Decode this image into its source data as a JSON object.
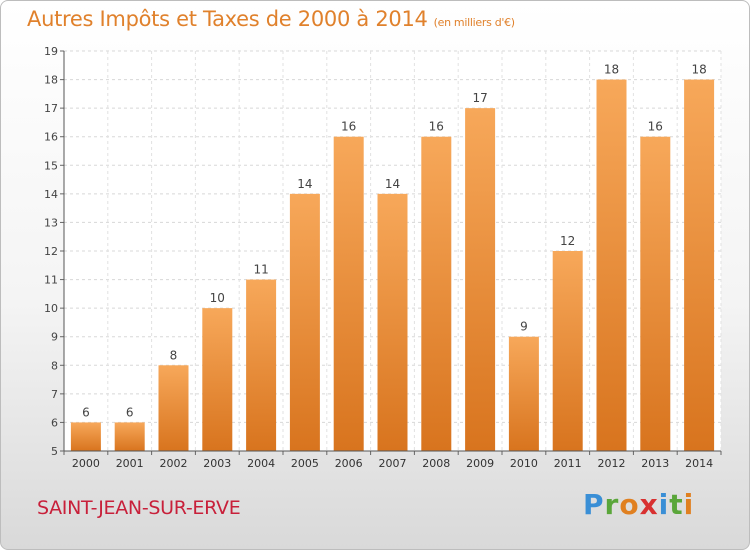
{
  "title": "Autres Impôts et Taxes de 2000 à 2014",
  "unit_note": "(en milliers d'€)",
  "footer": {
    "town": "SAINT-JEAN-SUR-ERVE",
    "logo_letters": [
      "P",
      "r",
      "o",
      "x",
      "i",
      "t",
      "i"
    ],
    "logo_colors": [
      "#3a8fd6",
      "#5aa63a",
      "#e08020",
      "#d83030",
      "#3a8fd6",
      "#5aa63a",
      "#e08020"
    ]
  },
  "chart_data": {
    "type": "bar",
    "title": "Autres Impôts et Taxes de 2000 à 2014",
    "subtitle": "(en milliers d'€)",
    "categories": [
      "2000",
      "2001",
      "2002",
      "2003",
      "2004",
      "2005",
      "2006",
      "2007",
      "2008",
      "2009",
      "2010",
      "2011",
      "2012",
      "2013",
      "2014"
    ],
    "values": [
      6,
      6,
      8,
      10,
      11,
      14,
      16,
      14,
      16,
      17,
      9,
      12,
      18,
      16,
      18
    ],
    "ylim": [
      5,
      19
    ],
    "yticks": [
      5,
      6,
      7,
      8,
      9,
      10,
      11,
      12,
      13,
      14,
      15,
      16,
      17,
      18,
      19
    ],
    "grid": true,
    "bar_color": "#e8862e"
  }
}
